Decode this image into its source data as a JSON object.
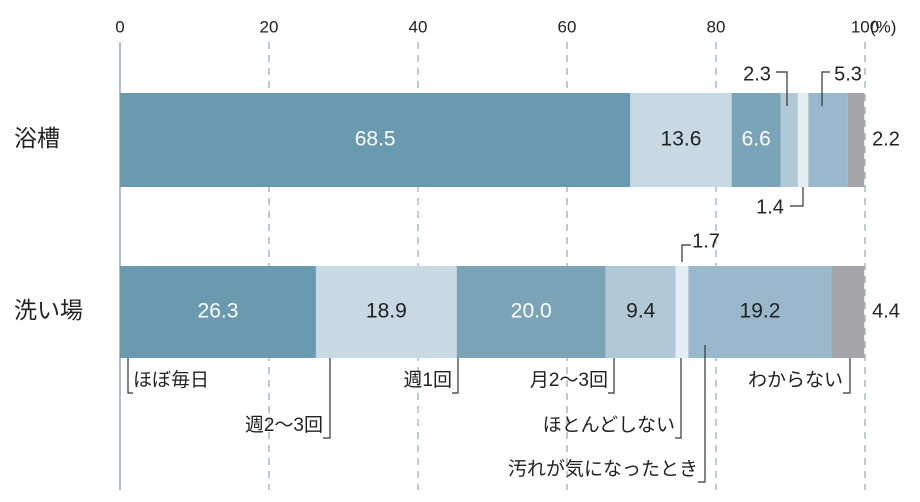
{
  "chart_data": {
    "type": "stacked-bar-horizontal",
    "categories": [
      "浴槽",
      "洗い場"
    ],
    "series": [
      {
        "name": "ほぼ毎日",
        "color": "#6a9aaf",
        "values": [
          68.5,
          26.3
        ],
        "value_labels": [
          "68.5",
          "26.3"
        ]
      },
      {
        "name": "週2〜3回",
        "color": "#c9d9e3",
        "values": [
          13.6,
          18.9
        ],
        "value_labels": [
          "13.6",
          "18.9"
        ]
      },
      {
        "name": "週1回",
        "color": "#7ba4b9",
        "values": [
          6.6,
          20
        ],
        "value_labels": [
          "6.6",
          "20.0"
        ]
      },
      {
        "name": "月2〜3回",
        "color": "#b1c9d7",
        "values": [
          2.3,
          9.4
        ],
        "value_labels": [
          "2.3",
          "9.4"
        ]
      },
      {
        "name": "ほとんどしない",
        "color": "#e4edf2",
        "values": [
          1.4,
          1.7
        ],
        "value_labels": [
          "1.4",
          "1.7"
        ]
      },
      {
        "name": "汚れが気になったとき",
        "color": "#99b8cb",
        "values": [
          5.3,
          19.2
        ],
        "value_labels": [
          "5.3",
          "19.2"
        ]
      },
      {
        "name": "わからない",
        "color": "#a6a6aa",
        "values": [
          2.2,
          4.4
        ],
        "value_labels": [
          "2.2",
          "4.4"
        ]
      }
    ],
    "xlim": [
      0,
      100
    ],
    "xticks": [
      0,
      20,
      40,
      60,
      80,
      100
    ],
    "x_unit": "(%)",
    "grid": true
  }
}
